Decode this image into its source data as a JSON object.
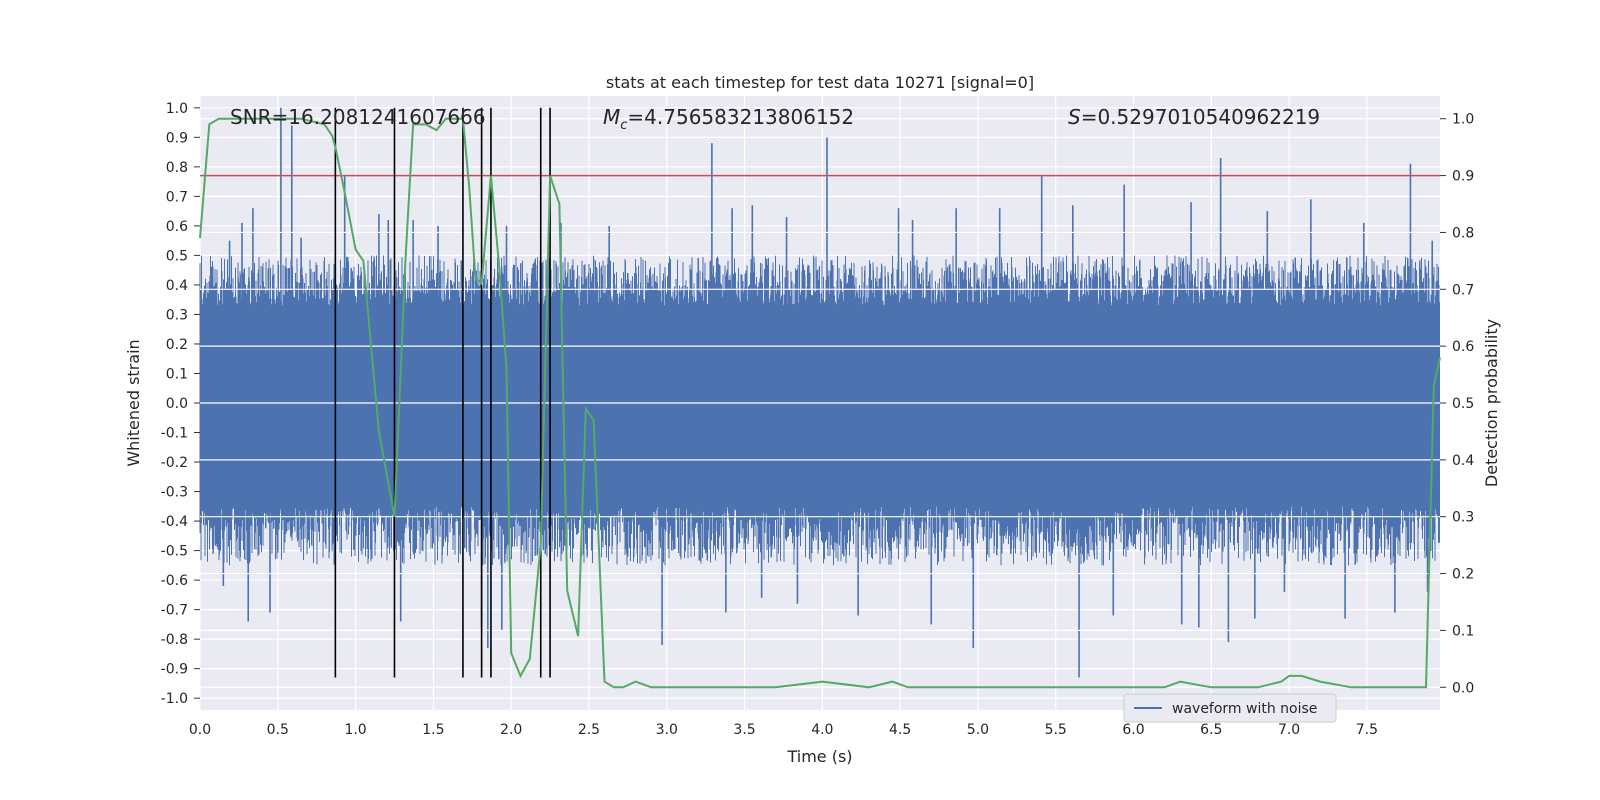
{
  "chart_data": {
    "type": "line",
    "title": "stats at each timestep for test data 10271 [signal=0]",
    "xlabel": "Time (s)",
    "ylabel": "Whitened strain",
    "ylabel_right": "Detection probability",
    "xlim": [
      0.0,
      7.97
    ],
    "ylim": [
      -1.04,
      1.04
    ],
    "ylim_right": [
      -0.04,
      1.04
    ],
    "x_ticks": [
      "0.0",
      "0.5",
      "1.0",
      "1.5",
      "2.0",
      "2.5",
      "3.0",
      "3.5",
      "4.0",
      "4.5",
      "5.0",
      "5.5",
      "6.0",
      "6.5",
      "7.0",
      "7.5"
    ],
    "y_ticks": [
      "1.0",
      "0.9",
      "0.8",
      "0.7",
      "0.6",
      "0.5",
      "0.4",
      "0.3",
      "0.2",
      "0.1",
      "0.0",
      "-0.1",
      "-0.2",
      "-0.3",
      "-0.4",
      "-0.5",
      "-0.6",
      "-0.7",
      "-0.8",
      "-0.9",
      "-1.0"
    ],
    "y_ticks_right": [
      "1.0",
      "0.9",
      "0.8",
      "0.7",
      "0.6",
      "0.5",
      "0.4",
      "0.3",
      "0.2",
      "0.1",
      "0.0"
    ],
    "grid": true,
    "legend": {
      "position": "bottom-right",
      "entries": [
        "waveform with noise"
      ]
    },
    "annotations": {
      "snr": "SNR=16.2081241607666",
      "mc_symbol": "M",
      "mc_sub": "c",
      "mc_value": "=4.756583213806152",
      "s_symbol": "S",
      "s_value": "=0.5297010540962219"
    },
    "threshold": 0.9,
    "vertical_lines": [
      0.87,
      1.25,
      1.69,
      1.81,
      1.87,
      2.19,
      2.25
    ],
    "vertical_line_range": [
      -0.93,
      1.0
    ],
    "noise_band": {
      "core_min": -0.35,
      "core_max": 0.33,
      "typical_max": 0.5,
      "typical_min": -0.55
    },
    "series": [
      {
        "name": "waveform with noise",
        "color": "#4c72b0",
        "peaks": [
          [
            0.19,
            0.55
          ],
          [
            0.27,
            0.61
          ],
          [
            0.34,
            0.66
          ],
          [
            0.52,
            1.0
          ],
          [
            0.59,
            0.94
          ],
          [
            0.65,
            0.56
          ],
          [
            0.93,
            0.77
          ],
          [
            1.15,
            0.64
          ],
          [
            1.21,
            0.62
          ],
          [
            1.37,
            0.62
          ],
          [
            1.53,
            0.6
          ],
          [
            1.97,
            0.6
          ],
          [
            2.32,
            0.61
          ],
          [
            2.63,
            0.6
          ],
          [
            3.29,
            0.88
          ],
          [
            3.42,
            0.66
          ],
          [
            3.55,
            0.67
          ],
          [
            3.77,
            0.63
          ],
          [
            4.03,
            0.9
          ],
          [
            4.49,
            0.66
          ],
          [
            4.58,
            0.62
          ],
          [
            4.86,
            0.66
          ],
          [
            5.14,
            0.66
          ],
          [
            5.41,
            0.77
          ],
          [
            5.61,
            0.67
          ],
          [
            5.94,
            0.74
          ],
          [
            6.37,
            0.68
          ],
          [
            6.56,
            0.83
          ],
          [
            6.86,
            0.65
          ],
          [
            7.14,
            0.69
          ],
          [
            7.48,
            0.61
          ],
          [
            7.78,
            0.81
          ],
          [
            7.92,
            0.55
          ]
        ],
        "troughs": [
          [
            0.15,
            -0.62
          ],
          [
            0.31,
            -0.74
          ],
          [
            0.45,
            -0.71
          ],
          [
            1.29,
            -0.74
          ],
          [
            1.81,
            -0.76
          ],
          [
            1.85,
            -0.83
          ],
          [
            1.94,
            -0.77
          ],
          [
            2.97,
            -0.82
          ],
          [
            3.38,
            -0.71
          ],
          [
            3.61,
            -0.66
          ],
          [
            3.84,
            -0.68
          ],
          [
            4.23,
            -0.72
          ],
          [
            4.7,
            -0.75
          ],
          [
            4.97,
            -0.83
          ],
          [
            5.65,
            -0.93
          ],
          [
            5.87,
            -0.72
          ],
          [
            6.31,
            -0.75
          ],
          [
            6.42,
            -0.76
          ],
          [
            6.61,
            -0.81
          ],
          [
            6.78,
            -0.73
          ],
          [
            6.97,
            -0.64
          ],
          [
            7.36,
            -0.73
          ],
          [
            7.68,
            -0.71
          ],
          [
            7.89,
            -0.64
          ]
        ]
      },
      {
        "name": "detection probability",
        "color": "#55a868",
        "axis": "right",
        "x": [
          0.0,
          0.06,
          0.12,
          0.3,
          0.5,
          0.65,
          0.8,
          0.85,
          0.87,
          0.93,
          1.0,
          1.05,
          1.1,
          1.15,
          1.25,
          1.32,
          1.37,
          1.45,
          1.52,
          1.58,
          1.63,
          1.69,
          1.73,
          1.77,
          1.81,
          1.87,
          1.92,
          1.97,
          2.0,
          2.06,
          2.12,
          2.19,
          2.25,
          2.31,
          2.36,
          2.43,
          2.48,
          2.53,
          2.6,
          2.66,
          2.72,
          2.8,
          2.9,
          3.1,
          3.5,
          3.7,
          4.0,
          4.3,
          4.45,
          4.55,
          4.8,
          5.0,
          5.5,
          6.0,
          6.2,
          6.3,
          6.5,
          6.8,
          6.95,
          7.0,
          7.08,
          7.2,
          7.4,
          7.6,
          7.82,
          7.88,
          7.93,
          7.97
        ],
        "y": [
          0.79,
          0.99,
          1.0,
          1.0,
          1.0,
          1.0,
          0.99,
          0.97,
          0.95,
          0.87,
          0.77,
          0.75,
          0.6,
          0.45,
          0.3,
          0.75,
          0.99,
          0.99,
          0.98,
          1.0,
          1.0,
          1.0,
          0.88,
          0.72,
          0.71,
          0.9,
          0.75,
          0.56,
          0.06,
          0.02,
          0.05,
          0.25,
          0.9,
          0.85,
          0.17,
          0.09,
          0.49,
          0.47,
          0.01,
          0.0,
          0.0,
          0.01,
          0.0,
          0.0,
          0.0,
          0.0,
          0.01,
          0.0,
          0.01,
          0.0,
          0.0,
          0.0,
          0.0,
          0.0,
          0.0,
          0.01,
          0.0,
          0.0,
          0.01,
          0.02,
          0.02,
          0.01,
          0.0,
          0.0,
          0.0,
          0.0,
          0.53,
          0.58
        ]
      }
    ],
    "colors": {
      "threshold": "#c44e52",
      "vlines": "#000000",
      "grid_bg": "#eaeaf2",
      "grid_line": "#ffffff"
    }
  }
}
